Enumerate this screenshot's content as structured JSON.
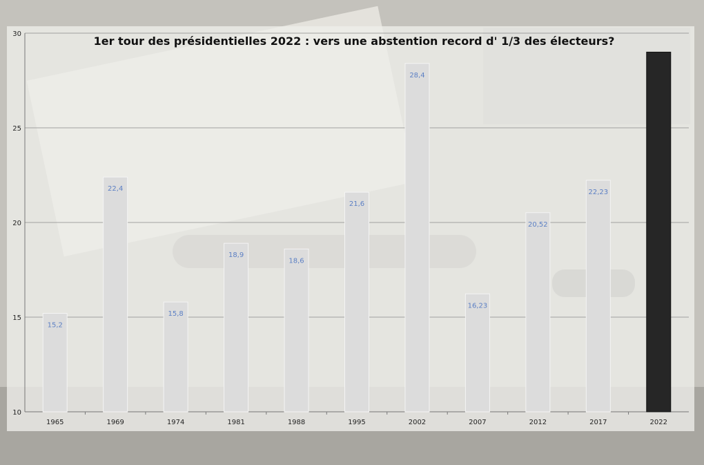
{
  "chart_data": {
    "type": "bar",
    "title": "1er tour des présidentielles 2022 : vers une abstention record d' 1/3 des électeurs?",
    "xlabel": "",
    "ylabel": "",
    "categories": [
      "1965",
      "1969",
      "1974",
      "1981",
      "1988",
      "1995",
      "2002",
      "2007",
      "2012",
      "2017",
      "2022"
    ],
    "values": [
      15.2,
      22.4,
      15.8,
      18.9,
      18.6,
      21.6,
      28.4,
      16.23,
      20.52,
      22.23,
      29.0
    ],
    "data_labels": [
      "15,2",
      "22,4",
      "15,8",
      "18,9",
      "18,6",
      "21,6",
      "28,4",
      "16,23",
      "20,52",
      "22,23",
      ""
    ],
    "ylim": [
      10,
      30
    ],
    "yticks": [
      "10",
      "15",
      "20",
      "25",
      "30"
    ],
    "ytick_values": [
      10,
      15,
      20,
      25,
      30
    ],
    "grid": true,
    "legend": "none",
    "colors": {
      "bar": "#dcdcdc",
      "highlight_bar": "#262626",
      "data_label": "#5b7fc4",
      "grid": "#8a8a8a"
    }
  }
}
